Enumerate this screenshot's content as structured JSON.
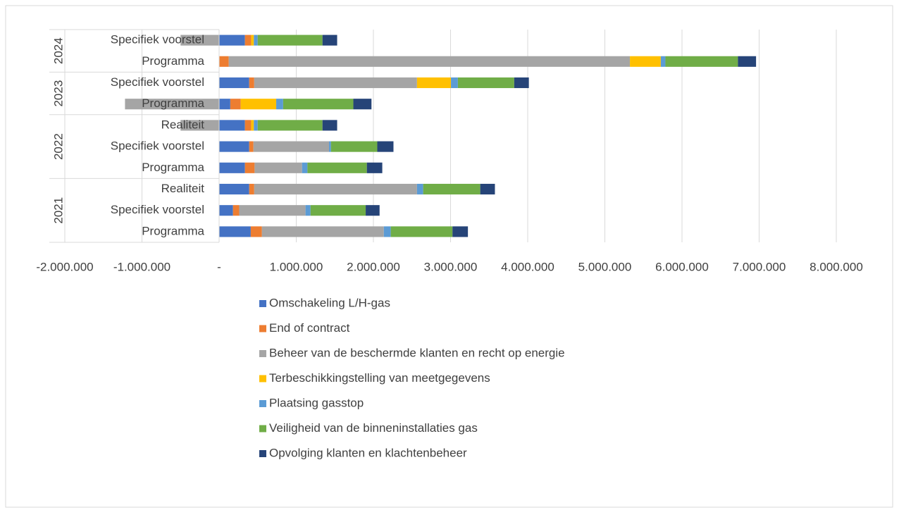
{
  "chart_data": {
    "type": "stacked-barh",
    "groups": [
      {
        "name": "2024",
        "categories": [
          "Specifiek voorstel",
          "Programma"
        ]
      },
      {
        "name": "2023",
        "categories": [
          "Specifiek voorstel",
          "Programma"
        ]
      },
      {
        "name": "2022",
        "categories": [
          "Realiteit",
          "Specifiek voorstel",
          "Programma"
        ]
      },
      {
        "name": "2021",
        "categories": [
          "Realiteit",
          "Specifiek voorstel",
          "Programma"
        ]
      }
    ],
    "series": [
      {
        "name": "Omschakeling L/H-gas",
        "color": "#4472c4",
        "values": [
          335000,
          0,
          390000,
          145000,
          335000,
          390000,
          335000,
          390000,
          180000,
          410000
        ]
      },
      {
        "name": "End of contract",
        "color": "#ed7d31",
        "values": [
          80000,
          125000,
          65000,
          135000,
          80000,
          55000,
          125000,
          65000,
          80000,
          145000
        ]
      },
      {
        "name": "Beheer van de beschermde klanten en recht op energie",
        "color": "#a5a5a5",
        "values": [
          -500000,
          5200000,
          2110000,
          -1220000,
          -500000,
          980000,
          615000,
          2110000,
          860000,
          1580000
        ]
      },
      {
        "name": "Terbeschikkingstelling van meetgegevens",
        "color": "#ffc000",
        "values": [
          35000,
          400000,
          440000,
          460000,
          35000,
          0,
          0,
          0,
          0,
          0
        ]
      },
      {
        "name": "Plaatsing gasstop",
        "color": "#5b9bd5",
        "values": [
          50000,
          60000,
          90000,
          90000,
          50000,
          25000,
          70000,
          80000,
          65000,
          90000
        ]
      },
      {
        "name": "Veiligheid van de binneninstallaties gas",
        "color": "#70ad47",
        "values": [
          840000,
          940000,
          730000,
          910000,
          840000,
          600000,
          770000,
          740000,
          715000,
          800000
        ]
      },
      {
        "name": "Opvolging klanten en klachtenbeheer",
        "color": "#264478",
        "values": [
          190000,
          235000,
          190000,
          235000,
          190000,
          210000,
          200000,
          190000,
          180000,
          200000
        ]
      }
    ],
    "xlim": [
      -2000000,
      8000000
    ],
    "xticks": [
      {
        "value": -2000000,
        "label": "-2.000.000"
      },
      {
        "value": -1000000,
        "label": "-1.000.000"
      },
      {
        "value": 0,
        "label": "-"
      },
      {
        "value": 1000000,
        "label": "1.000.000"
      },
      {
        "value": 2000000,
        "label": "2.000.000"
      },
      {
        "value": 3000000,
        "label": "3.000.000"
      },
      {
        "value": 4000000,
        "label": "4.000.000"
      },
      {
        "value": 5000000,
        "label": "5.000.000"
      },
      {
        "value": 6000000,
        "label": "6.000.000"
      },
      {
        "value": 7000000,
        "label": "7.000.000"
      },
      {
        "value": 8000000,
        "label": "8.000.000"
      }
    ],
    "grid": true,
    "legend": "bottom"
  }
}
